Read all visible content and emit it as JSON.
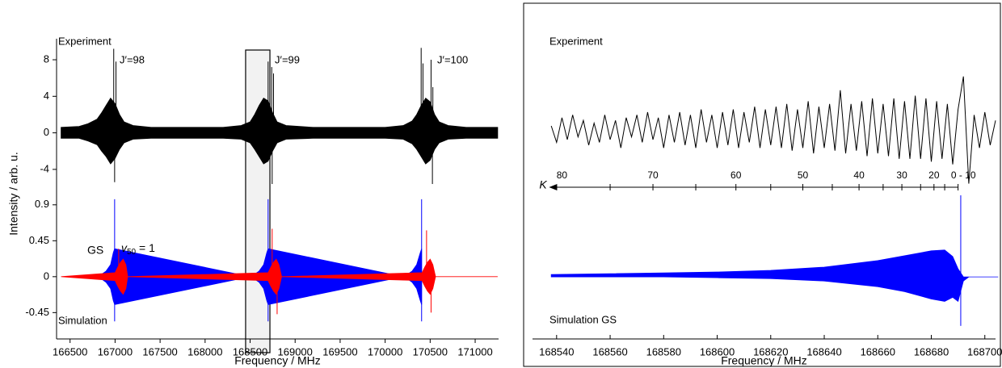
{
  "chart_data": [
    {
      "type": "line",
      "xlabel": "Frequency / MHz",
      "ylabel": "Intensity / arb. u.",
      "xlim": [
        166350,
        171260
      ],
      "xticks": [
        166500,
        167000,
        167500,
        168000,
        168500,
        169000,
        169500,
        170000,
        170500,
        171000
      ],
      "highlight": [
        168450,
        168720
      ],
      "panels": [
        {
          "label": "Experiment",
          "ylim": [
            -5.6,
            10.3
          ],
          "yticks": [
            -4,
            0,
            4,
            8
          ],
          "annotations": [
            "J′=98",
            "J′=99",
            "J′=100"
          ],
          "series": [
            {
              "color": "#000000",
              "x": [
                166400,
                166600,
                166700,
                166800,
                166850,
                166900,
                166950,
                167000,
                167050,
                167100,
                167200,
                167400,
                167800,
                168200,
                168400,
                168500,
                168550,
                168600,
                168650,
                168700,
                168750,
                168800,
                168900,
                169200,
                169600,
                170000,
                170200,
                170300,
                170350,
                170400,
                170450,
                170500,
                170550,
                170600,
                170700,
                170900,
                171250
              ],
              "upper": [
                0.6,
                0.7,
                1.0,
                1.5,
                2.2,
                3,
                3.8,
                3.2,
                2,
                1.2,
                0.8,
                0.6,
                0.6,
                0.6,
                0.8,
                1.2,
                2.0,
                3.0,
                3.8,
                3.5,
                2.2,
                1.2,
                0.8,
                0.6,
                0.6,
                0.6,
                0.8,
                1.3,
                2.0,
                3.0,
                3.8,
                3.4,
                2,
                1.2,
                0.8,
                0.6,
                0.6
              ],
              "lower": [
                -0.6,
                -0.6,
                -0.9,
                -1.3,
                -2,
                -2.6,
                -3.4,
                -2.8,
                -1.8,
                -1.1,
                -0.7,
                -0.6,
                -0.6,
                -0.6,
                -0.7,
                -1.1,
                -1.8,
                -2.6,
                -3.4,
                -3.1,
                -2,
                -1.1,
                -0.7,
                -0.6,
                -0.6,
                -0.6,
                -0.7,
                -1.2,
                -1.8,
                -2.6,
                -3.4,
                -3.0,
                -1.8,
                -1.1,
                -0.7,
                -0.6,
                -0.6
              ],
              "peaks_x": [
                166985,
                167010,
                166995,
                168700,
                168740,
                168760,
                168745,
                170400,
                170420,
                170510,
                170530,
                170525
              ],
              "peaks_y": [
                9.2,
                7.8,
                -5.4,
                7.8,
                7.2,
                6.5,
                -5.6,
                9.3,
                7.6,
                8.0,
                5.0,
                -5.6
              ]
            }
          ]
        },
        {
          "label": "Simulation",
          "ylim": [
            -0.78,
            1.09
          ],
          "yticks": [
            -0.45,
            0,
            0.45,
            0.9
          ],
          "series": [
            {
              "name": "GS",
              "color": "#0000ff",
              "x": [
                166800,
                166850,
                166900,
                166950,
                166980,
                166995,
                168500,
                168550,
                168600,
                168650,
                168685,
                168700,
                170200,
                170250,
                170300,
                170350,
                170390,
                170405
              ],
              "upper": [
                0,
                0.03,
                0.07,
                0.15,
                0.3,
                0.35,
                0,
                0.03,
                0.07,
                0.15,
                0.3,
                0.35,
                0,
                0.03,
                0.07,
                0.15,
                0.3,
                0.35
              ],
              "lower": [
                0,
                -0.03,
                -0.07,
                -0.15,
                -0.3,
                -0.35,
                0,
                -0.03,
                -0.07,
                -0.15,
                -0.3,
                -0.35,
                0,
                -0.03,
                -0.07,
                -0.15,
                -0.3,
                -0.35
              ],
              "peaks_x": [
                166995,
                166995,
                168700,
                168700,
                170405,
                170405
              ],
              "peaks_y": [
                0.97,
                -0.56,
                0.97,
                -0.56,
                0.97,
                -0.56
              ]
            },
            {
              "name_parts": [
                "v",
                "50",
                " = 1"
              ],
              "color": "#ff0000",
              "x": [
                166400,
                167000,
                167030,
                167060,
                167090,
                167120,
                167140,
                168700,
                168730,
                168760,
                168790,
                168820,
                168850,
                170410,
                170440,
                170470,
                170500,
                170530,
                170560,
                171250
              ],
              "upper": [
                0,
                0.05,
                0.12,
                0.18,
                0.22,
                0.15,
                0,
                0.05,
                0.12,
                0.18,
                0.22,
                0.15,
                0,
                0.05,
                0.12,
                0.18,
                0.22,
                0.15,
                0,
                0
              ],
              "lower": [
                0,
                -0.05,
                -0.12,
                -0.18,
                -0.22,
                -0.15,
                0,
                -0.05,
                -0.12,
                -0.18,
                -0.22,
                -0.15,
                0,
                -0.05,
                -0.12,
                -0.18,
                -0.22,
                -0.15,
                0,
                0
              ],
              "peaks_x": [
                167040,
                167090,
                168745,
                168800,
                170460,
                170510
              ],
              "peaks_y": [
                0.35,
                -0.2,
                0.6,
                -0.47,
                0.58,
                -0.45
              ]
            }
          ]
        }
      ]
    },
    {
      "type": "line",
      "xlabel": "Frequency / MHz",
      "xlim": [
        168531,
        168704
      ],
      "xticks": [
        168540,
        168560,
        168580,
        168600,
        168620,
        168640,
        168660,
        168680,
        168700
      ],
      "panels": [
        {
          "label": "Experiment",
          "ylim": [
            -1.28,
            1.51
          ],
          "k_axis": {
            "label": "K",
            "ticks": [
              168560,
              168576,
              168592,
              168607,
              168620,
              168632,
              168643,
              168653,
              168662,
              168669,
              168676,
              168681,
              168685,
              168690
            ],
            "tick_labels": [
              {
                "value": 168542,
                "label": "80"
              },
              {
                "value": 168576,
                "label": "70"
              },
              {
                "value": 168607,
                "label": "60"
              },
              {
                "value": 168632,
                "label": "50"
              },
              {
                "value": 168653,
                "label": "40"
              },
              {
                "value": 168669,
                "label": "30"
              },
              {
                "value": 168681,
                "label": "20"
              },
              {
                "value": 168692,
                "label": "0 - 10"
              }
            ]
          },
          "series": [
            {
              "color": "#000000",
              "x": [
                168538,
                168540,
                168542,
                168544,
                168546,
                168548,
                168550,
                168552,
                168554,
                168556,
                168558,
                168560,
                168562,
                168564,
                168566,
                168568,
                168570,
                168572,
                168574,
                168576,
                168578,
                168580,
                168582,
                168584,
                168586,
                168588,
                168590,
                168592,
                168594,
                168596,
                168598,
                168600,
                168602,
                168604,
                168606,
                168608,
                168610,
                168612,
                168614,
                168616,
                168618,
                168620,
                168622,
                168624,
                168626,
                168628,
                168630,
                168632,
                168634,
                168636,
                168638,
                168640,
                168642,
                168644,
                168646,
                168648,
                168650,
                168652,
                168654,
                168656,
                168658,
                168660,
                168662,
                168664,
                168666,
                168668,
                168670,
                168672,
                168674,
                168676,
                168678,
                168680,
                168682,
                168684,
                168686,
                168688,
                168690,
                168692,
                168694,
                168696,
                168698,
                168700,
                168702,
                168704
              ],
              "values": [
                0.1,
                -0.2,
                0.25,
                -0.15,
                0.3,
                -0.1,
                0.2,
                -0.25,
                0.15,
                -0.2,
                0.3,
                -0.15,
                0.2,
                -0.3,
                0.25,
                -0.1,
                0.3,
                -0.2,
                0.35,
                -0.15,
                0.25,
                -0.3,
                0.3,
                -0.2,
                0.35,
                -0.25,
                0.3,
                -0.3,
                0.4,
                -0.2,
                0.3,
                -0.3,
                0.35,
                -0.25,
                0.4,
                -0.3,
                0.35,
                -0.2,
                0.45,
                -0.3,
                0.4,
                -0.25,
                0.45,
                -0.3,
                0.5,
                -0.35,
                0.4,
                -0.3,
                0.55,
                -0.4,
                0.45,
                -0.3,
                0.5,
                -0.35,
                0.75,
                -0.4,
                0.5,
                -0.35,
                0.55,
                -0.45,
                0.6,
                -0.4,
                0.5,
                -0.45,
                0.6,
                -0.5,
                0.55,
                -0.5,
                0.65,
                -0.5,
                0.6,
                -0.55,
                0.55,
                -0.5,
                0.5,
                -0.6,
                0.4,
                1.0,
                -0.95,
                0.3,
                -0.3,
                0.35,
                -0.25,
                0.2
              ]
            }
          ]
        },
        {
          "label": "Simulation GS",
          "ylim": [
            -0.76,
            1.02
          ],
          "series": [
            {
              "color": "#0000ff",
              "x": [
                168538,
                168560,
                168580,
                168600,
                168620,
                168640,
                168660,
                168670,
                168680,
                168685,
                168688,
                168690,
                168692,
                168694,
                168705
              ],
              "upper": [
                0.03,
                0.04,
                0.05,
                0.06,
                0.08,
                0.12,
                0.2,
                0.26,
                0.32,
                0.33,
                0.25,
                0.1,
                0,
                0,
                0
              ],
              "lower": [
                0,
                0,
                0,
                -0.01,
                -0.02,
                -0.05,
                -0.12,
                -0.18,
                -0.27,
                -0.3,
                -0.25,
                -0.3,
                -0.05,
                0,
                0
              ],
              "peaks_x": [
                168691,
                168691
              ],
              "peaks_y": [
                1.0,
                -0.6
              ]
            }
          ]
        }
      ]
    }
  ]
}
